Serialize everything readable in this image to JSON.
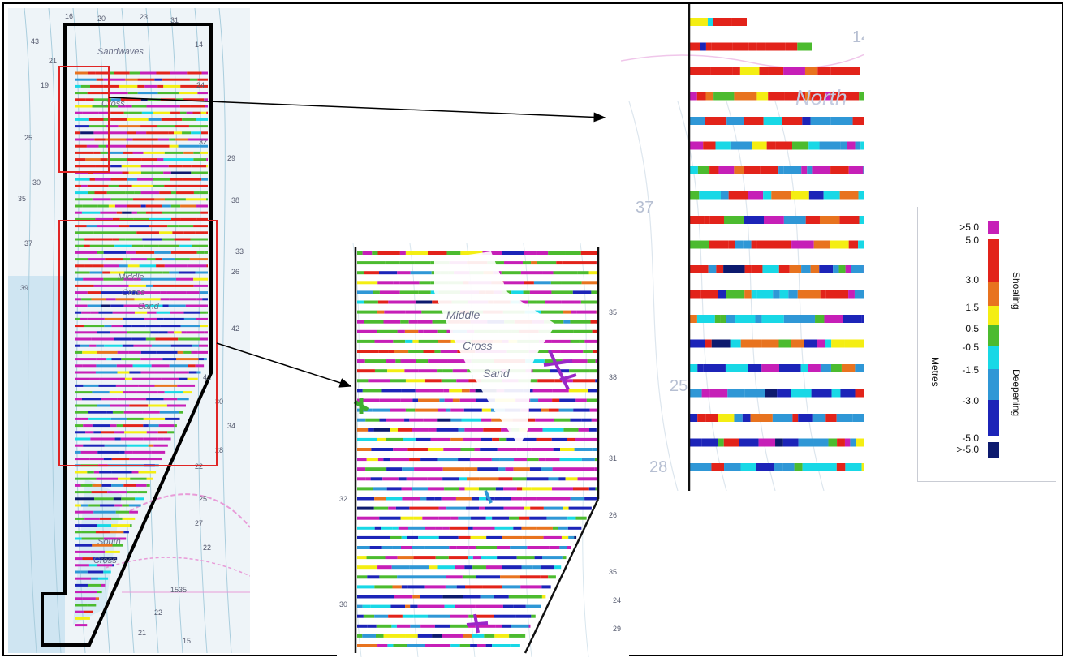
{
  "left_map": {
    "labels": [
      "Sandwaves",
      "Cross",
      "Middle",
      "Cross",
      "Sand",
      "South",
      "Cross"
    ],
    "depths": [
      "16",
      "20",
      "23",
      "31",
      "43",
      "14",
      "21",
      "19",
      "24",
      "25",
      "32",
      "30",
      "29",
      "35",
      "38",
      "37",
      "33",
      "26",
      "39",
      "42",
      "41",
      "30",
      "34",
      "28",
      "22",
      "25",
      "27",
      "22",
      "22",
      "21",
      "15",
      "1535"
    ]
  },
  "mid_map": {
    "labels": [
      "Middle",
      "Cross",
      "Sand"
    ],
    "depths": [
      "35",
      "38",
      "31",
      "32",
      "26",
      "35",
      "24",
      "29",
      "30"
    ]
  },
  "right_map": {
    "labels": [
      "North"
    ],
    "depths": [
      "14",
      "37",
      "28",
      "25"
    ]
  },
  "legend": {
    "title": "Metres",
    "shoaling_label": "Shoaling",
    "deepening_label": "Deepening",
    "ticks": [
      ">5.0",
      "5.0",
      "3.0",
      "1.5",
      "0.5",
      "-0.5",
      "-1.5",
      "-3.0",
      "-5.0",
      ">-5.0"
    ],
    "colors": {
      "gt5": "#c61fb7",
      "5_to_3": "#e2231a",
      "3_to_1_5": "#e8731f",
      "1_5_to_0_5": "#f4ee13",
      "0_5_to_neg0_5": "#4cbb2f",
      "neg0_5_to_neg1_5": "#18d8e6",
      "neg1_5_to_neg3": "#2f97d6",
      "neg3_to_neg5": "#1c24b8",
      "lt_neg5": "#0d1a6e"
    }
  },
  "colors": {
    "frame": "#000000",
    "highlight_box": "#e02525",
    "water_shallow": "#d8ecf6",
    "contour": "#9ec9d9",
    "chart_pink": "#e89bd8"
  }
}
